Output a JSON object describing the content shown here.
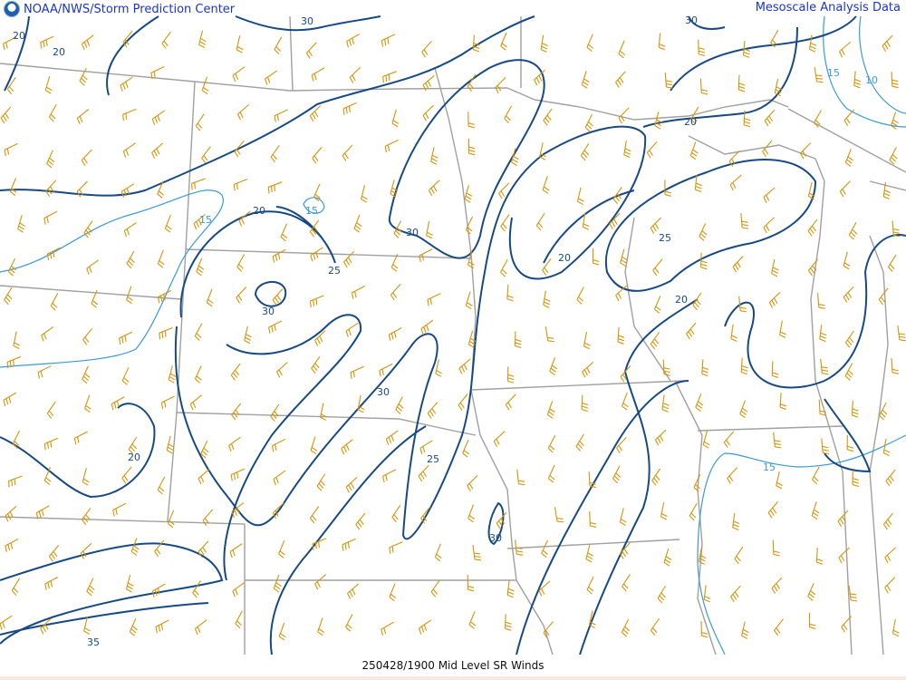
{
  "header": {
    "left_title": "NOAA/NWS/Storm Prediction Center",
    "right_title": "Mesoscale Analysis Data"
  },
  "footer": {
    "caption": "250428/1900 Mid Level SR Winds"
  },
  "colors": {
    "contour_strong": "#174a84",
    "contour_weak": "#3a9ad9",
    "wind_barbs": "#d4940a",
    "borders": "#a0a0a0",
    "title_text": "#1a35c8"
  },
  "icons": {
    "logo": "noaa-logo"
  },
  "contour_labels": {
    "l1": "20",
    "l2": "20",
    "l3": "30",
    "l4": "30",
    "l5": "20",
    "l6": "15",
    "l7": "10",
    "l8": "15",
    "l9": "20",
    "l10": "15",
    "l11": "30",
    "l12": "25",
    "l13": "20",
    "l14": "25",
    "l15": "30",
    "l16": "20",
    "l17": "30",
    "l18": "20",
    "l19": "25",
    "l20": "30",
    "l21": "15",
    "l22": "35"
  }
}
